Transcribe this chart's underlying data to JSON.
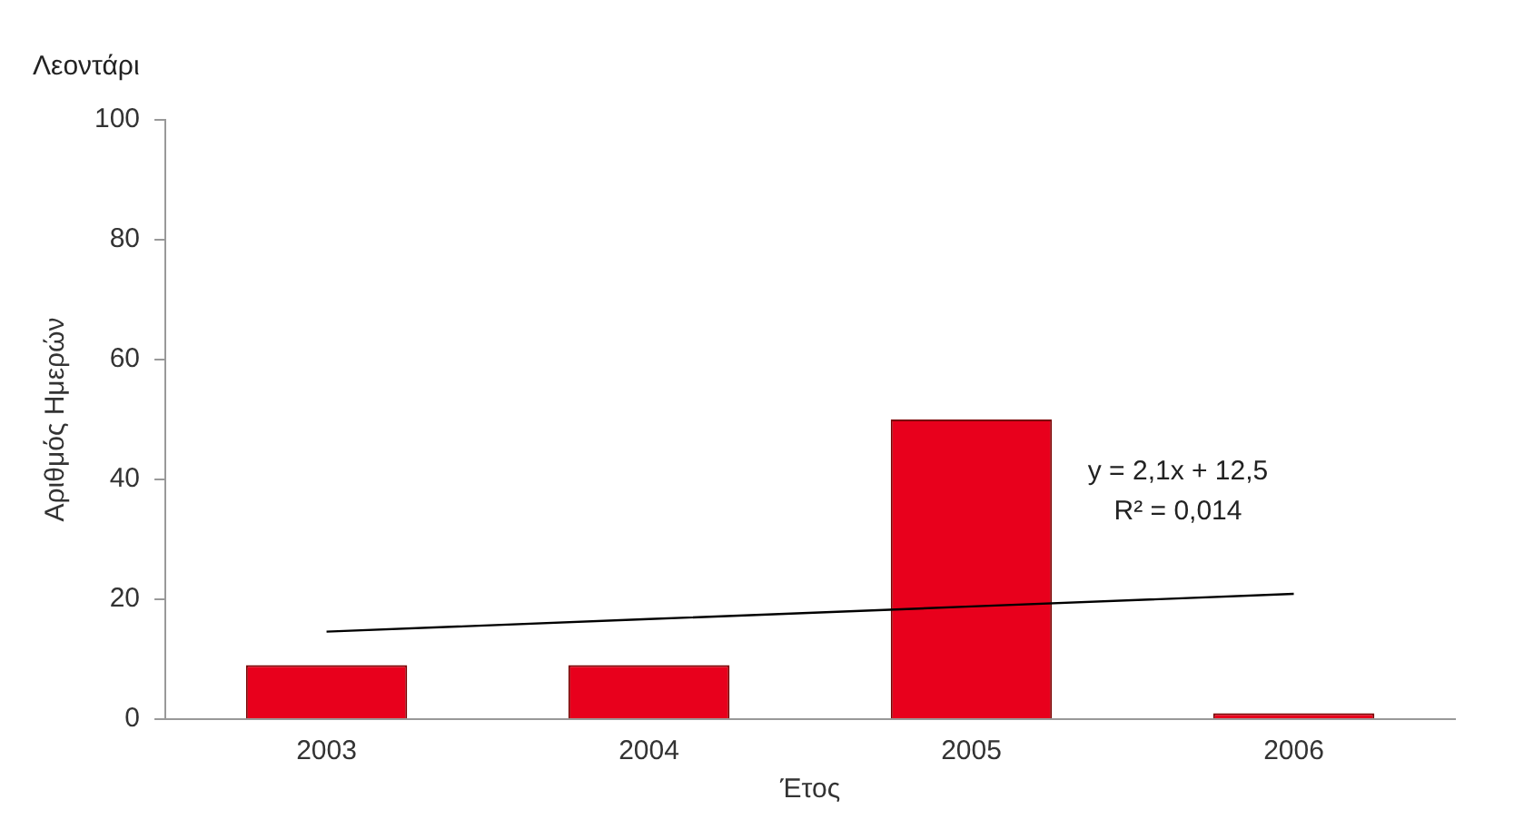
{
  "chart_data": {
    "type": "bar",
    "title": "Λεοντάρι",
    "xlabel": "Έτος",
    "ylabel": "Αριθμός Ημερών",
    "categories": [
      "2003",
      "2004",
      "2005",
      "2006"
    ],
    "series": [
      {
        "color": "#e8001c",
        "values": [
          9,
          9,
          50,
          1
        ]
      },
      {
        "type": "line",
        "color": "#000000",
        "values": [
          14.6,
          16.7,
          18.8,
          20.9
        ]
      }
    ],
    "ylim": [
      0,
      100
    ],
    "yticks": [
      0,
      20,
      40,
      60,
      80,
      100
    ],
    "grid": false,
    "legend": false,
    "marker": "none",
    "line_style": "solid",
    "annotations": [
      "y = 2,1x + 12,5",
      "R² = 0,014"
    ]
  }
}
